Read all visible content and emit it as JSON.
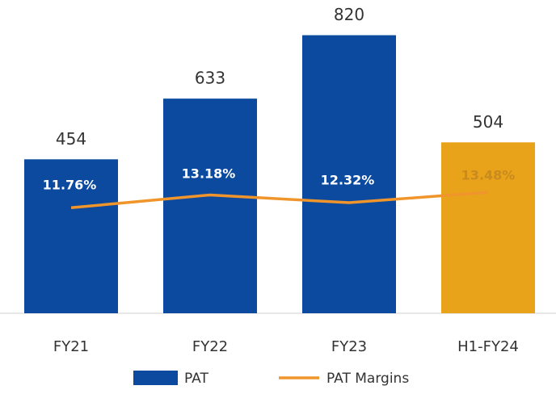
{
  "chart_data": {
    "type": "bar_line",
    "categories": [
      "FY21",
      "FY22",
      "FY23",
      "H1-FY24"
    ],
    "series": [
      {
        "name": "PAT",
        "type": "bar",
        "color": "#0b4a9e",
        "bar_colors": [
          "#0b4a9e",
          "#0b4a9e",
          "#0b4a9e",
          "#e8a31a"
        ],
        "values": [
          454,
          633,
          820,
          504
        ]
      },
      {
        "name": "PAT Margins",
        "type": "line",
        "axis": "y2",
        "color": "#f0952c",
        "label_colors": [
          "#ffffff",
          "#ffffff",
          "#ffffff",
          "#c98a1e"
        ],
        "values": [
          11.76,
          13.18,
          12.32,
          13.48
        ],
        "value_labels": [
          "11.76%",
          "13.18%",
          "12.32%",
          "13.48%"
        ]
      }
    ],
    "ylim": [
      0,
      900
    ],
    "y2lim": [
      0,
      34
    ],
    "legend": "bottom"
  }
}
